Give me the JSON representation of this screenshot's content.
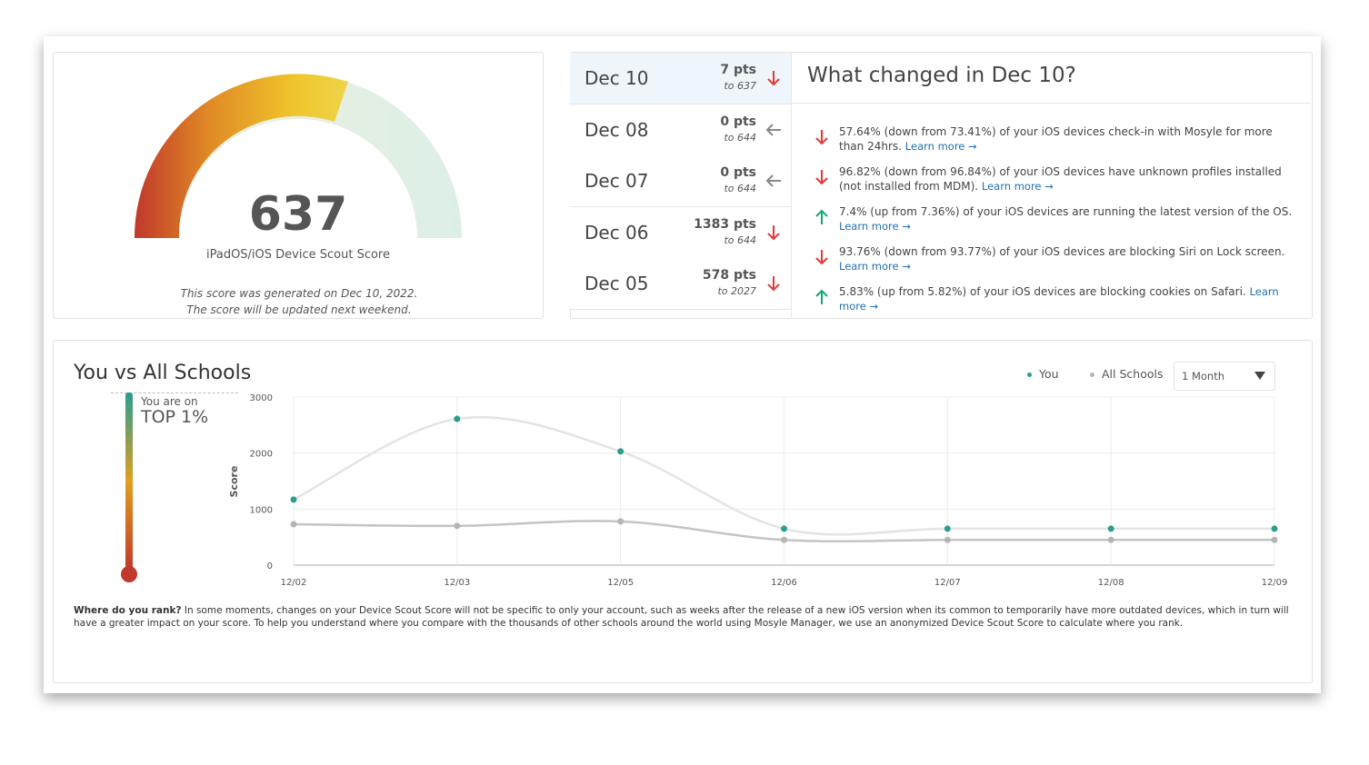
{
  "gauge": {
    "score": "637",
    "label": "iPadOS/iOS Device Scout Score",
    "note": "This score was generated on Dec 10, 2022. The score will be updated next weekend."
  },
  "history": [
    {
      "date": "Dec 10",
      "pts": "7 pts",
      "to": "to 637",
      "trend": "down",
      "selected": true
    },
    {
      "date": "Dec 08",
      "pts": "0 pts",
      "to": "to 644",
      "trend": "flat"
    },
    {
      "date": "Dec 07",
      "pts": "0 pts",
      "to": "to 644",
      "trend": "flat"
    },
    {
      "date": "Dec 06",
      "pts": "1383 pts",
      "to": "to 644",
      "trend": "down"
    },
    {
      "date": "Dec 05",
      "pts": "578 pts",
      "to": "to 2027",
      "trend": "down"
    }
  ],
  "changes": {
    "title": "What changed in Dec 10?",
    "items": [
      {
        "text": "57.64% (down from 73.41%) of your iOS devices check-in with Mosyle for more than 24hrs.",
        "link": "Learn more →",
        "trend": "down"
      },
      {
        "text": "96.82% (down from 96.84%) of your iOS devices have unknown profiles installed (not installed from MDM).",
        "link": "Learn more →",
        "trend": "down"
      },
      {
        "text": "7.4% (up from 7.36%) of your iOS devices are running the latest version of the OS.",
        "link": "Learn more →",
        "trend": "up"
      },
      {
        "text": "93.76% (down from 93.77%) of your iOS devices are blocking Siri on Lock screen.",
        "link": "Learn more →",
        "trend": "down"
      },
      {
        "text": "5.83% (up from 5.82%) of your iOS devices are blocking cookies on Safari.",
        "link": "Learn more →",
        "trend": "up"
      }
    ]
  },
  "comparison": {
    "title": "You vs All Schools",
    "rank_label": "You are on",
    "rank": "TOP 1%",
    "period": "1 Month",
    "footnote_lead": "Where do you rank?",
    "footnote": "In some moments, changes on your Device Scout Score will not be specific to only your account, such as weeks after the release of a new iOS version when its common to temporarily have more outdated devices, which in turn will have a greater impact on your score. To help you understand where you compare with the thousands of other schools around the world using Mosyle Manager, we use an anonymized Device Scout Score to calculate where you rank."
  },
  "chart_data": {
    "type": "line",
    "y_label": "Score",
    "categories": [
      "12/02",
      "12/03",
      "12/05",
      "12/06",
      "12/07",
      "12/08",
      "12/09"
    ],
    "series": [
      {
        "name": "You",
        "color": "#2a9d8f",
        "line_color": "#e4e4e4",
        "values": [
          1170,
          2610,
          2030,
          650,
          650,
          650,
          650
        ]
      },
      {
        "name": "All Schools",
        "color": "#b5b5b5",
        "line_color": "#c4c4c4",
        "values": [
          730,
          700,
          780,
          450,
          450,
          450,
          450
        ]
      }
    ],
    "ylim": [
      0,
      3000
    ],
    "yticks": [
      0,
      1000,
      2000,
      3000
    ],
    "grid": true
  }
}
